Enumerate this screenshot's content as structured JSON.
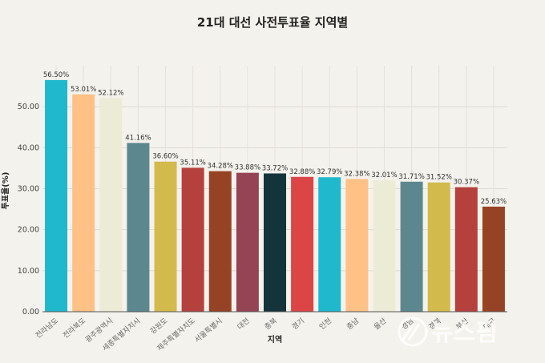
{
  "watermark": "뉴스핌",
  "chart_data": {
    "type": "bar",
    "title": "21대 대선 사전투표율 지역별",
    "xlabel": "지역",
    "ylabel": "투표율(%)",
    "ylim": [
      0,
      60
    ],
    "yticks": [
      "0.00",
      "10.00",
      "20.00",
      "30.00",
      "40.00",
      "50.00"
    ],
    "grid": true,
    "categories": [
      "전라남도",
      "전라북도",
      "광주광역시",
      "세종특별자치시",
      "강원도",
      "제주특별자치도",
      "서울특별시",
      "대전",
      "충북",
      "경기",
      "인천",
      "충남",
      "울산",
      "경남",
      "경북",
      "부산",
      "대구"
    ],
    "values": [
      56.5,
      53.01,
      52.12,
      41.16,
      36.6,
      35.11,
      34.28,
      33.88,
      33.72,
      32.88,
      32.79,
      32.38,
      32.01,
      31.71,
      31.52,
      30.37,
      25.63
    ],
    "value_labels": [
      "56.50%",
      "53.01%",
      "52.12%",
      "41.16%",
      "36.60%",
      "35.11%",
      "34.28%",
      "33.88%",
      "33.72%",
      "32.88%",
      "32.79%",
      "32.38%",
      "32.01%",
      "31.71%",
      "31.52%",
      "30.37%",
      "25.63%"
    ],
    "colors": [
      "#1fb8cd",
      "#ffc185",
      "#ecebd5",
      "#5d878f",
      "#d2ba4c",
      "#b4413c",
      "#964325",
      "#944454",
      "#13343b",
      "#db4545",
      "#1fb8cd",
      "#ffc185",
      "#ecebd5",
      "#5d878f",
      "#d2ba4c",
      "#b4413c",
      "#964325"
    ]
  }
}
